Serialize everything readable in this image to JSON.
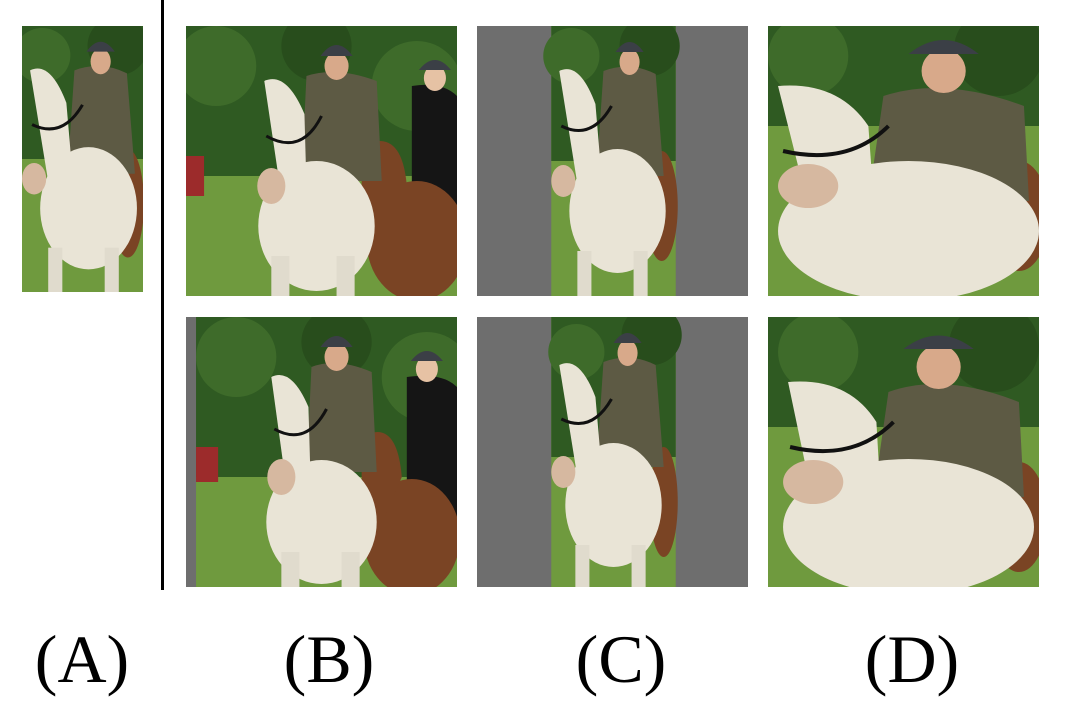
{
  "labels": {
    "a": "(A)",
    "b": "(B)",
    "c": "(C)",
    "d": "(D)"
  },
  "colors": {
    "foliage": "#2f5a22",
    "grass": "#6f9a3e",
    "white_horse": "#e9e4d6",
    "brown_horse": "#7a4424",
    "rider_jacket": "#5d5a44",
    "helmet": "#3b3f46",
    "padding_gray": "#6e6e6e",
    "divider": "#000000"
  }
}
